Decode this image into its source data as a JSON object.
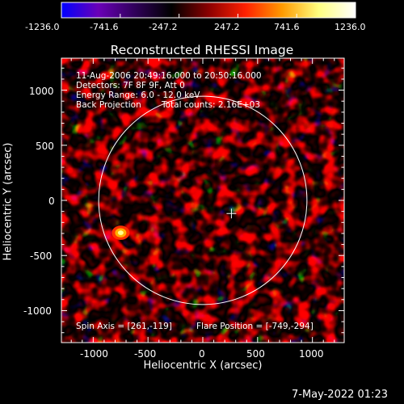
{
  "colorbar": {
    "ticks": [
      "-1236.0",
      "-741.6",
      "-247.2",
      "247.2",
      "741.6",
      "1236.0"
    ],
    "colors": [
      "#0000ff",
      "#6a00b8",
      "#30005a",
      "#000000",
      "#8a0000",
      "#ff2000",
      "#ff9a00",
      "#ffff80",
      "#ffffff"
    ]
  },
  "header": {
    "title": "Reconstructed RHESSI Image",
    "line1": "11-Aug-2006 20:49:16.000 to 20:50:16.000",
    "line2": "Detectors: 7F 8F 9F, Att 0",
    "line3": "Energy Range: 6.0 - 12.0 keV",
    "line4a": "Back Projection",
    "line4b": "Total counts: 2.16E+03"
  },
  "footer": {
    "spin_axis": "Spin Axis = [261,-119]",
    "flare_position": "Flare Position = [-749,-294]",
    "timestamp": "7-May-2022 01:23"
  },
  "chart_data": {
    "type": "heatmap",
    "title": "Reconstructed RHESSI Image",
    "xlabel": "Heliocentric X (arcsec)",
    "ylabel": "Heliocentric Y (arcsec)",
    "xlim": [
      -1290,
      1290
    ],
    "ylim": [
      -1290,
      1290
    ],
    "x_ticks": [
      "-1000",
      "-500",
      "0",
      "500",
      "1000"
    ],
    "y_ticks": [
      "-1000",
      "-500",
      "0",
      "500",
      "1000"
    ],
    "x_tick_values": [
      -1000,
      -500,
      0,
      500,
      1000
    ],
    "y_tick_values": [
      -1000,
      -500,
      0,
      500,
      1000
    ],
    "value_range": [
      -1236.0,
      1236.0
    ],
    "solar_limb_radius": 950,
    "spin_axis": [
      261,
      -119
    ],
    "flare_position": [
      -749,
      -294
    ]
  }
}
